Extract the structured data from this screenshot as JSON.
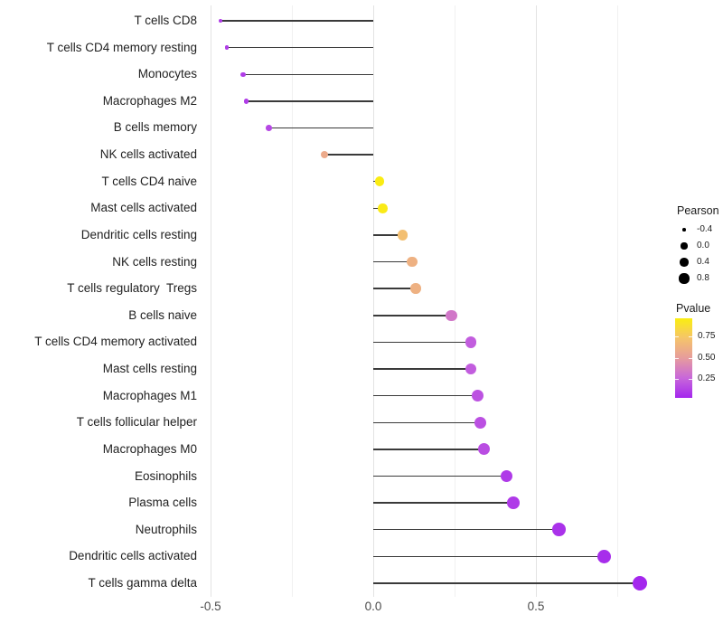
{
  "chart_data": {
    "type": "scatter",
    "subtype": "lollipop",
    "title": "",
    "xlabel": "",
    "ylabel": "",
    "x_tick_labels": [
      "-0.5",
      "0.0",
      "0.5"
    ],
    "x_ticks": [
      -0.5,
      0.0,
      0.5
    ],
    "x_minor_ticks": [
      -0.25,
      0.25,
      0.75
    ],
    "xlim": [
      -0.53,
      0.88
    ],
    "grid": "vertical-only",
    "points": [
      {
        "label": "T cells CD8",
        "pearson": -0.47,
        "pvalue": 0.1
      },
      {
        "label": "T cells CD4 memory resting",
        "pearson": -0.45,
        "pvalue": 0.1
      },
      {
        "label": "Monocytes",
        "pearson": -0.4,
        "pvalue": 0.1
      },
      {
        "label": "Macrophages M2",
        "pearson": -0.39,
        "pvalue": 0.1
      },
      {
        "label": "B cells memory",
        "pearson": -0.32,
        "pvalue": 0.14
      },
      {
        "label": "NK cells activated",
        "pearson": -0.15,
        "pvalue": 0.58
      },
      {
        "label": "T cells CD4 naive",
        "pearson": 0.02,
        "pvalue": 0.96
      },
      {
        "label": "Mast cells activated",
        "pearson": 0.03,
        "pvalue": 0.95
      },
      {
        "label": "Dendritic cells resting",
        "pearson": 0.09,
        "pvalue": 0.7
      },
      {
        "label": "NK cells resting",
        "pearson": 0.12,
        "pvalue": 0.62
      },
      {
        "label": "T cells regulatory  Tregs",
        "pearson": 0.13,
        "pvalue": 0.62
      },
      {
        "label": "B cells naive",
        "pearson": 0.24,
        "pvalue": 0.33
      },
      {
        "label": "T cells CD4 memory activated",
        "pearson": 0.3,
        "pvalue": 0.22
      },
      {
        "label": "Mast cells resting",
        "pearson": 0.3,
        "pvalue": 0.22
      },
      {
        "label": "Macrophages M1",
        "pearson": 0.32,
        "pvalue": 0.18
      },
      {
        "label": "T cells follicular helper",
        "pearson": 0.33,
        "pvalue": 0.17
      },
      {
        "label": "Macrophages M0",
        "pearson": 0.34,
        "pvalue": 0.16
      },
      {
        "label": "Eosinophils",
        "pearson": 0.41,
        "pvalue": 0.09
      },
      {
        "label": "Plasma cells",
        "pearson": 0.43,
        "pvalue": 0.09
      },
      {
        "label": "Neutrophils",
        "pearson": 0.57,
        "pvalue": 0.06
      },
      {
        "label": "Dendritic cells activated",
        "pearson": 0.71,
        "pvalue": 0.04
      },
      {
        "label": "T cells gamma delta",
        "pearson": 0.82,
        "pvalue": 0.02
      }
    ],
    "legends": {
      "size": {
        "title": "Pearson",
        "entries": [
          {
            "label": "-0.4",
            "value": -0.4
          },
          {
            "label": "0.0",
            "value": 0.0
          },
          {
            "label": "0.4",
            "value": 0.4
          },
          {
            "label": "0.8",
            "value": 0.8
          }
        ]
      },
      "color": {
        "title": "Pvalue",
        "tick_labels": [
          "0.75",
          "0.50",
          "0.25"
        ],
        "tick_values": [
          0.75,
          0.5,
          0.25
        ],
        "range": [
          0.02,
          0.97
        ]
      }
    },
    "colors": {
      "stem": "#3a3a3a",
      "gridline_major": "#e3e3e3",
      "gridline_minor": "#f1f1f1",
      "axis_text": "#4d4d4d",
      "label_text": "#1f1f1f",
      "gradient_stops": [
        {
          "p": 0.0,
          "hex": "#a122ee"
        },
        {
          "p": 0.25,
          "hex": "#c765dc"
        },
        {
          "p": 0.5,
          "hex": "#e79d9c"
        },
        {
          "p": 0.75,
          "hex": "#f6c766"
        },
        {
          "p": 1.0,
          "hex": "#fbf303"
        }
      ]
    }
  }
}
